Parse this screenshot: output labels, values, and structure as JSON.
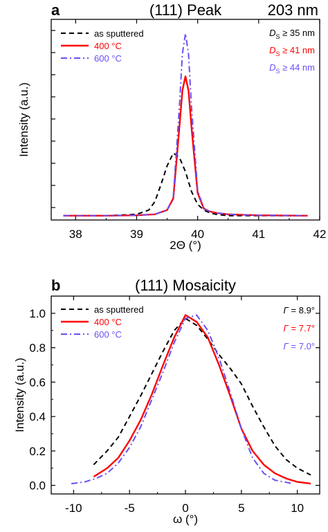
{
  "colors": {
    "as_sputtered": "#000000",
    "c400": "#ff0000",
    "c600": "#6a4ff5",
    "axis": "#000000"
  },
  "chart_data": [
    {
      "panel_label": "a",
      "type": "line",
      "title": "(111) Peak",
      "subtitle": "203 nm",
      "xlabel": "2Θ (°)",
      "ylabel": "Intensity (a.u.)",
      "xlim": [
        37.6,
        42
      ],
      "xticks": [
        38,
        39,
        40,
        41,
        42
      ],
      "y_tick_labels_shown": false,
      "legend_position": "top-left",
      "grid": false,
      "series": [
        {
          "name": "as sputtered",
          "style": "dashed",
          "x": [
            37.8,
            38.5,
            39.0,
            39.2,
            39.3,
            39.4,
            39.5,
            39.6,
            39.7,
            39.8,
            39.9,
            40.0,
            40.1,
            40.2,
            40.3,
            40.5,
            41.0,
            41.8
          ],
          "y": [
            0.0,
            0.0,
            0.01,
            0.04,
            0.1,
            0.22,
            0.35,
            0.44,
            0.41,
            0.31,
            0.17,
            0.08,
            0.04,
            0.02,
            0.01,
            0.0,
            0.0,
            0.0
          ]
        },
        {
          "name": "400 °C",
          "style": "solid",
          "x": [
            37.8,
            38.5,
            39.0,
            39.3,
            39.5,
            39.6,
            39.7,
            39.75,
            39.8,
            39.85,
            39.9,
            40.0,
            40.1,
            40.2,
            40.3,
            40.5,
            41.0,
            41.8
          ],
          "y": [
            0.0,
            0.0,
            0.003,
            0.01,
            0.04,
            0.12,
            0.62,
            0.88,
            0.98,
            0.88,
            0.62,
            0.16,
            0.05,
            0.03,
            0.02,
            0.01,
            0.003,
            0.0
          ],
          "annotation": "D_S ≥ 41 nm"
        },
        {
          "name": "600 °C",
          "style": "dash-dot",
          "x": [
            37.8,
            38.5,
            39.0,
            39.3,
            39.5,
            39.6,
            39.7,
            39.75,
            39.8,
            39.85,
            39.9,
            40.0,
            40.1,
            40.2,
            40.3,
            40.5,
            41.0,
            41.8
          ],
          "y": [
            0.0,
            0.0,
            0.003,
            0.01,
            0.04,
            0.13,
            0.76,
            1.14,
            1.28,
            1.14,
            0.76,
            0.18,
            0.05,
            0.03,
            0.02,
            0.01,
            0.003,
            0.0
          ],
          "annotation": "D_S ≥ 44 nm"
        }
      ],
      "annotations": [
        {
          "series": "as sputtered",
          "prefix": "D",
          "sub": "S",
          "text": " ≥ 35 nm"
        },
        {
          "series": "400 °C",
          "prefix": "D",
          "sub": "S",
          "text": " ≥ 41 nm"
        },
        {
          "series": "600 °C",
          "prefix": "D",
          "sub": "S",
          "text": " ≥ 44 nm"
        }
      ],
      "ylim": [
        -0.03,
        1.38
      ]
    },
    {
      "panel_label": "b",
      "type": "line",
      "title": "(111) Mosaicity",
      "xlabel": "ω (°)",
      "ylabel": "Intensity (a.u.)",
      "xlim": [
        -12,
        12
      ],
      "ylim": [
        -0.05,
        1.1
      ],
      "xticks": [
        -10,
        -5,
        0,
        5,
        10
      ],
      "yticks": [
        0.0,
        0.2,
        0.4,
        0.6,
        0.8,
        1.0
      ],
      "ytick_labels": [
        "0.0",
        "0.2",
        "0.4",
        "0.6",
        "0.8",
        "1.0"
      ],
      "legend_position": "top-left",
      "grid": false,
      "series": [
        {
          "name": "as sputtered",
          "style": "dashed",
          "x": [
            -8.2,
            -7,
            -6,
            -5,
            -4,
            -3,
            -2,
            -1,
            0,
            1,
            2,
            3,
            4,
            5,
            6,
            7,
            8,
            9,
            10,
            11.2
          ],
          "y": [
            0.12,
            0.2,
            0.28,
            0.4,
            0.52,
            0.65,
            0.78,
            0.9,
            0.97,
            0.93,
            0.85,
            0.76,
            0.68,
            0.59,
            0.46,
            0.34,
            0.23,
            0.15,
            0.1,
            0.06
          ]
        },
        {
          "name": "400 °C",
          "style": "solid",
          "x": [
            -8.2,
            -7,
            -6,
            -5,
            -4,
            -3,
            -2,
            -1,
            0,
            1,
            2,
            3,
            4,
            5,
            6,
            7,
            8,
            9,
            10,
            11.2
          ],
          "y": [
            0.05,
            0.1,
            0.16,
            0.26,
            0.38,
            0.53,
            0.7,
            0.86,
            0.99,
            0.95,
            0.86,
            0.7,
            0.52,
            0.33,
            0.2,
            0.12,
            0.07,
            0.04,
            0.02,
            0.01
          ]
        },
        {
          "name": "600 °C",
          "style": "dash-dot",
          "x": [
            -10.2,
            -9,
            -8,
            -7,
            -6,
            -5,
            -4,
            -3,
            -2,
            -1,
            0,
            1,
            2,
            3,
            4,
            5,
            6,
            7,
            8,
            9.6
          ],
          "y": [
            0.01,
            0.02,
            0.04,
            0.07,
            0.13,
            0.22,
            0.34,
            0.5,
            0.66,
            0.83,
            0.97,
            0.99,
            0.9,
            0.74,
            0.54,
            0.33,
            0.16,
            0.07,
            0.03,
            0.01
          ]
        }
      ],
      "annotations": [
        {
          "series": "as sputtered",
          "prefix": "Γ",
          "sub": "",
          "text": " = 8.9°"
        },
        {
          "series": "400 °C",
          "prefix": "Γ",
          "sub": "",
          "text": " = 7.7°"
        },
        {
          "series": "600 °C",
          "prefix": "Γ",
          "sub": "",
          "text": " = 7.0°"
        }
      ]
    }
  ]
}
